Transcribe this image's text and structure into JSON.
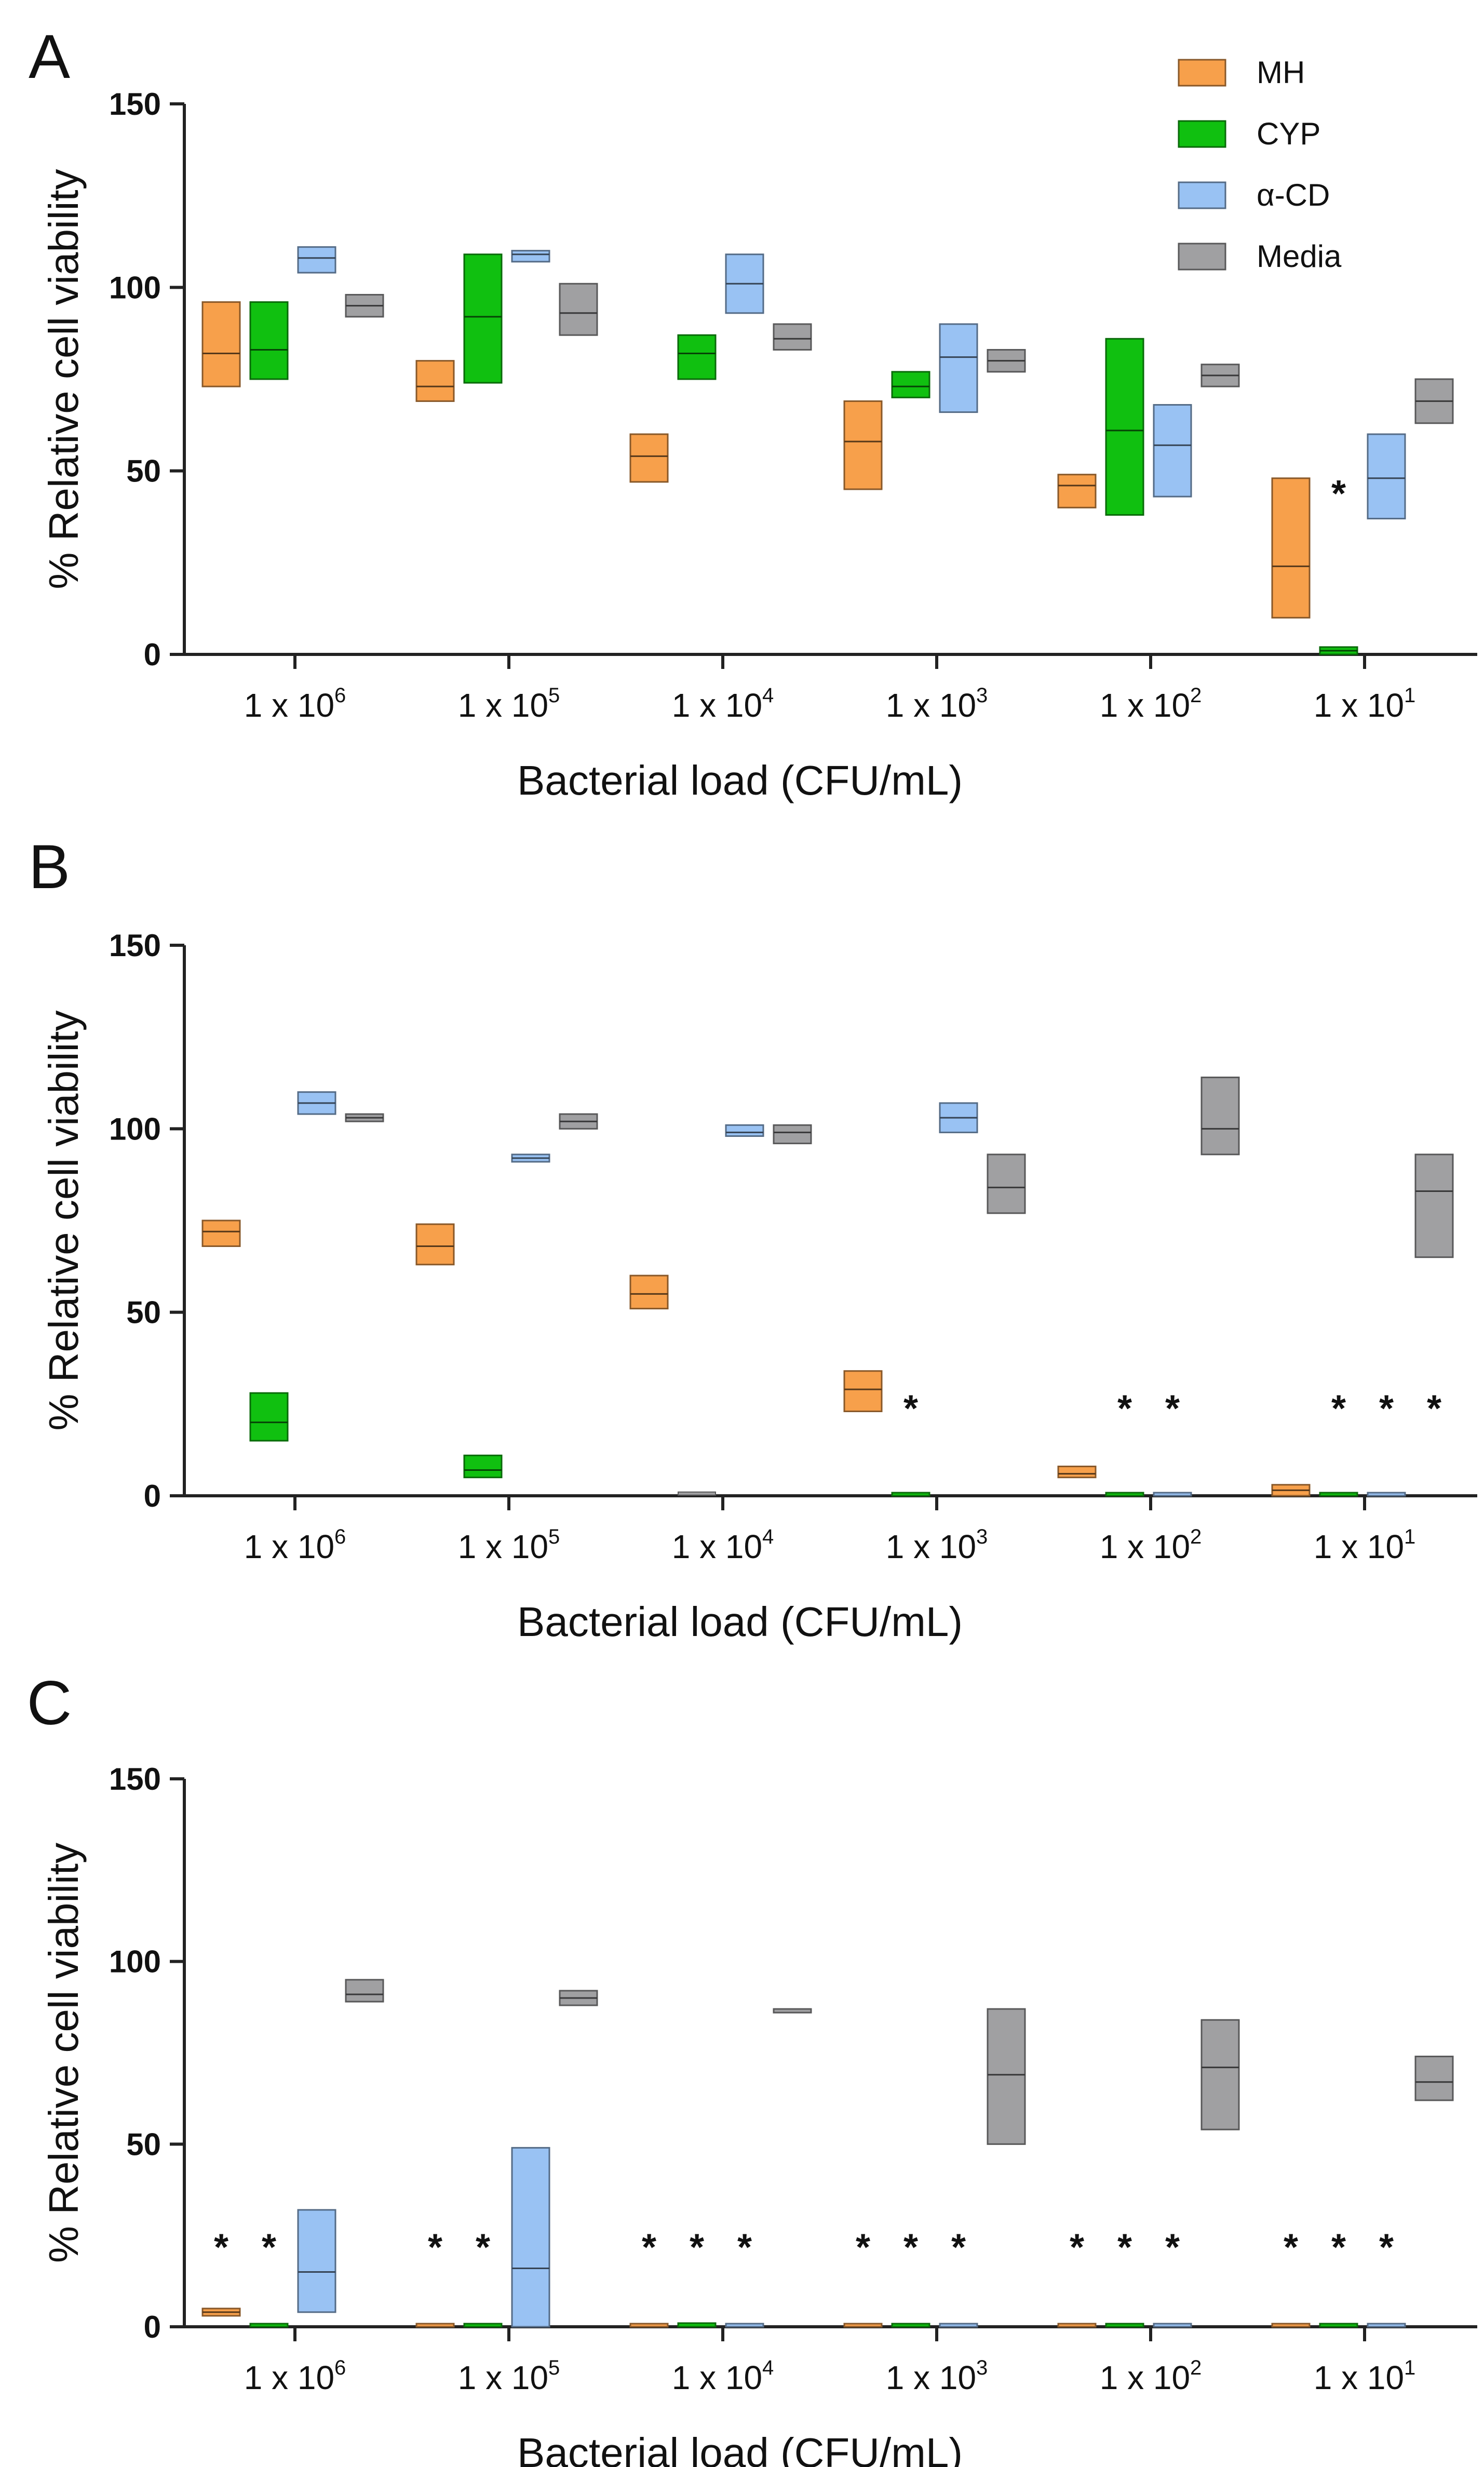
{
  "chart_data": [
    {
      "type": "floating-bar",
      "panel": "A",
      "xlabel": "Bacterial load (CFU/mL)",
      "ylabel": "% Relative cell viability",
      "ylim": [
        0,
        150
      ],
      "yticks": [
        "0",
        "50",
        "100",
        "150"
      ],
      "legend": {
        "position": "top-right",
        "entries": [
          "MH",
          "CYP",
          "α-CD",
          "Media"
        ]
      },
      "categories": [
        {
          "base": "1 x 10",
          "exp": "6"
        },
        {
          "base": "1 x 10",
          "exp": "5"
        },
        {
          "base": "1 x 10",
          "exp": "4"
        },
        {
          "base": "1 x 10",
          "exp": "3"
        },
        {
          "base": "1 x 10",
          "exp": "2"
        },
        {
          "base": "1 x 10",
          "exp": "1"
        }
      ],
      "series": [
        {
          "name": "MH",
          "color": "#F7A04B",
          "values": [
            [
              73,
              82,
              96
            ],
            [
              69,
              73,
              80
            ],
            [
              47,
              54,
              60
            ],
            [
              45,
              58,
              69
            ],
            [
              40,
              46,
              49
            ],
            [
              10,
              24,
              48
            ]
          ]
        },
        {
          "name": "CYP",
          "color": "#10C010",
          "values": [
            [
              75,
              83,
              96
            ],
            [
              74,
              92,
              109
            ],
            [
              75,
              82,
              87
            ],
            [
              70,
              73,
              77
            ],
            [
              38,
              61,
              86
            ],
            [
              0,
              1,
              2
            ]
          ]
        },
        {
          "name": "α-CD",
          "color": "#99C2F3",
          "values": [
            [
              104,
              108,
              111
            ],
            [
              107,
              109,
              110
            ],
            [
              93,
              101,
              109
            ],
            [
              66,
              81,
              90
            ],
            [
              43,
              57,
              68
            ],
            [
              37,
              48,
              60
            ]
          ]
        },
        {
          "name": "Media",
          "color": "#A0A0A2",
          "values": [
            [
              92,
              95,
              98
            ],
            [
              87,
              93,
              101
            ],
            [
              83,
              86,
              90
            ],
            [
              77,
              80,
              83
            ],
            [
              73,
              76,
              79
            ],
            [
              63,
              69,
              75
            ]
          ]
        }
      ],
      "annotations": [
        {
          "text": "*",
          "category": 5,
          "series": 1
        }
      ]
    },
    {
      "type": "floating-bar",
      "panel": "B",
      "xlabel": "Bacterial load (CFU/mL)",
      "ylabel": "% Relative cell viability",
      "ylim": [
        0,
        150
      ],
      "yticks": [
        "0",
        "50",
        "100",
        "150"
      ],
      "categories": [
        {
          "base": "1 x 10",
          "exp": "6"
        },
        {
          "base": "1 x 10",
          "exp": "5"
        },
        {
          "base": "1 x 10",
          "exp": "4"
        },
        {
          "base": "1 x 10",
          "exp": "3"
        },
        {
          "base": "1 x 10",
          "exp": "2"
        },
        {
          "base": "1 x 10",
          "exp": "1"
        }
      ],
      "series": [
        {
          "name": "MH",
          "color": "#F7A04B",
          "values": [
            [
              68,
              72,
              75
            ],
            [
              63,
              68,
              74
            ],
            [
              51,
              55,
              60
            ],
            [
              23,
              29,
              34
            ],
            [
              5,
              6,
              8
            ],
            [
              0,
              1.5,
              3
            ]
          ]
        },
        {
          "name": "CYP",
          "color": "#10C010",
          "values": [
            [
              15,
              20,
              28
            ],
            [
              5,
              7,
              11
            ],
            [
              null,
              null,
              null
            ],
            [
              0,
              0.3,
              0.6
            ],
            [
              0,
              0.3,
              0.6
            ],
            [
              0,
              0.3,
              0.6
            ]
          ]
        },
        {
          "name": "α-CD",
          "color": "#99C2F3",
          "values": [
            [
              104,
              107,
              110
            ],
            [
              91,
              92,
              93
            ],
            [
              98,
              99,
              101
            ],
            [
              99,
              103,
              107
            ],
            [
              0,
              0.4,
              0.8
            ],
            [
              0,
              0.3,
              0.6
            ]
          ]
        },
        {
          "name": "Media",
          "color": "#A0A0A2",
          "values": [
            [
              102,
              103,
              104
            ],
            [
              100,
              102,
              104
            ],
            [
              96,
              99,
              101
            ],
            [
              77,
              84,
              93
            ],
            [
              93,
              100,
              114
            ],
            [
              65,
              83,
              93
            ]
          ]
        }
      ],
      "extra_marks": [
        {
          "category": 2,
          "offset": -0.5,
          "value": 0.6,
          "color": "#A0A0A2"
        }
      ],
      "annotations": [
        {
          "text": "*",
          "category": 3,
          "series": 1
        },
        {
          "text": "*",
          "category": 4,
          "series": 1
        },
        {
          "text": "*",
          "category": 4,
          "series": 2
        },
        {
          "text": "*",
          "category": 5,
          "series": 1
        },
        {
          "text": "*",
          "category": 5,
          "series": 2
        },
        {
          "text": "*",
          "category": 5,
          "series": 3
        }
      ]
    },
    {
      "type": "floating-bar",
      "panel": "C",
      "xlabel": "Bacterial load (CFU/mL)",
      "ylabel": "% Relative cell viability",
      "ylim": [
        0,
        150
      ],
      "yticks": [
        "0",
        "50",
        "100",
        "150"
      ],
      "categories": [
        {
          "base": "1 x 10",
          "exp": "6"
        },
        {
          "base": "1 x 10",
          "exp": "5"
        },
        {
          "base": "1 x 10",
          "exp": "4"
        },
        {
          "base": "1 x 10",
          "exp": "3"
        },
        {
          "base": "1 x 10",
          "exp": "2"
        },
        {
          "base": "1 x 10",
          "exp": "1"
        }
      ],
      "series": [
        {
          "name": "MH",
          "color": "#F7A04B",
          "values": [
            [
              3,
              4,
              5
            ],
            [
              0,
              0.3,
              0.6
            ],
            [
              0,
              0.3,
              0.6
            ],
            [
              0,
              0.3,
              0.5
            ],
            [
              0,
              0.3,
              0.5
            ],
            [
              0,
              0.3,
              0.5
            ]
          ]
        },
        {
          "name": "CYP",
          "color": "#10C010",
          "values": [
            [
              0,
              0.3,
              0.6
            ],
            [
              0,
              0.3,
              0.6
            ],
            [
              0,
              0.5,
              1
            ],
            [
              0,
              0.3,
              0.6
            ],
            [
              0,
              0.3,
              0.6
            ],
            [
              0,
              0.3,
              0.6
            ]
          ]
        },
        {
          "name": "α-CD",
          "color": "#99C2F3",
          "values": [
            [
              4,
              15,
              32
            ],
            [
              0,
              16,
              49
            ],
            [
              0,
              0.3,
              0.6
            ],
            [
              0,
              0.3,
              0.5
            ],
            [
              0,
              0.3,
              0.5
            ],
            [
              0,
              0.3,
              0.5
            ]
          ]
        },
        {
          "name": "Media",
          "color": "#A0A0A2",
          "values": [
            [
              89,
              91,
              95
            ],
            [
              88,
              90,
              92
            ],
            [
              86,
              86.5,
              87
            ],
            [
              50,
              69,
              87
            ],
            [
              54,
              71,
              84
            ],
            [
              62,
              67,
              74
            ]
          ]
        }
      ],
      "annotations": [
        {
          "text": "*",
          "category": 0,
          "series": 0
        },
        {
          "text": "*",
          "category": 0,
          "series": 1
        },
        {
          "text": "*",
          "category": 1,
          "series": 0
        },
        {
          "text": "*",
          "category": 1,
          "series": 1
        },
        {
          "text": "*",
          "category": 2,
          "series": 0
        },
        {
          "text": "*",
          "category": 2,
          "series": 1
        },
        {
          "text": "*",
          "category": 2,
          "series": 2
        },
        {
          "text": "*",
          "category": 3,
          "series": 0
        },
        {
          "text": "*",
          "category": 3,
          "series": 1
        },
        {
          "text": "*",
          "category": 3,
          "series": 2
        },
        {
          "text": "*",
          "category": 4,
          "series": 0
        },
        {
          "text": "*",
          "category": 4,
          "series": 1
        },
        {
          "text": "*",
          "category": 4,
          "series": 2
        },
        {
          "text": "*",
          "category": 5,
          "series": 0
        },
        {
          "text": "*",
          "category": 5,
          "series": 1
        },
        {
          "text": "*",
          "category": 5,
          "series": 2
        }
      ]
    }
  ]
}
